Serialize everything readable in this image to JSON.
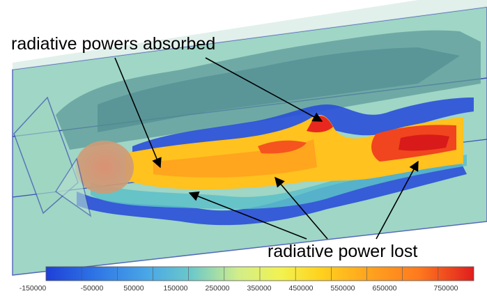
{
  "annotations": {
    "absorbed": "radiative powers absorbed",
    "lost": "radiative power lost"
  },
  "colorbar": {
    "ticks": [
      "-150000",
      "-50000",
      "50000",
      "150000",
      "250000",
      "350000",
      "450000",
      "550000",
      "650000",
      "750000"
    ],
    "colors": [
      "#1e3fd8",
      "#2f77e6",
      "#4aa8e6",
      "#6cc9c9",
      "#9fe0b0",
      "#d2ee8a",
      "#f2f250",
      "#ffd21e",
      "#ffa51e",
      "#ff7a1e",
      "#f54a1e",
      "#e01e1e"
    ]
  },
  "colors": {
    "domain_fill": "#7fc9b4",
    "domain_edge": "#3a4fb0",
    "low_power": "#2a4fd8",
    "mid_power": "#5cc0c8",
    "high_power": "#ffa51e",
    "peak_power": "#e8281e"
  }
}
